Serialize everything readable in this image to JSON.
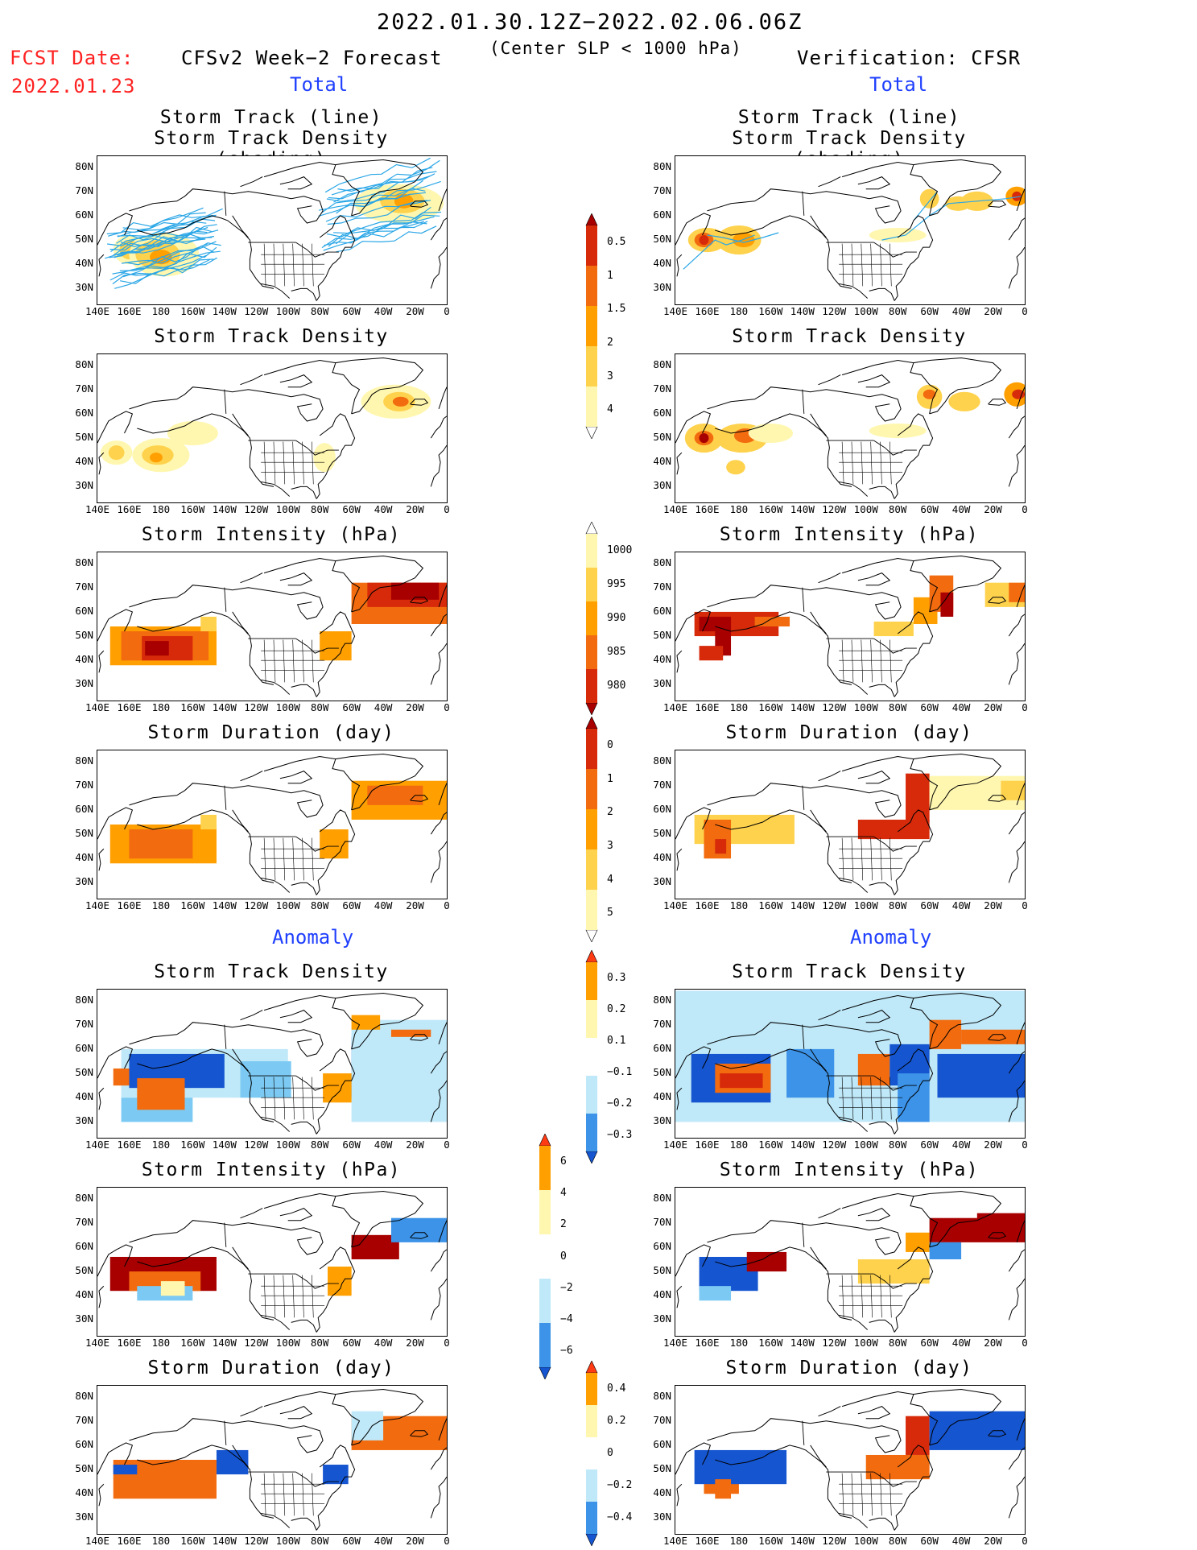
{
  "header": {
    "date_range": "2022.01.30.12Z−2022.02.06.06Z",
    "criterion": "(Center SLP < 1000 hPa)",
    "fcst_label": "FCST Date:",
    "fcst_date": "2022.01.23",
    "left_title": "CFSv2 Week−2 Forecast",
    "right_title": "Verification: CFSR",
    "total_label": "Total",
    "anomaly_label": "Anomaly"
  },
  "titles": {
    "track_line": "Storm Track (line)",
    "track_density_shading": "Storm Track Density (shading)",
    "track_density": "Storm Track Density",
    "intensity": "Storm Intensity (hPa)",
    "duration": "Storm Duration (day)"
  },
  "axes": {
    "lat_ticks": [
      "80N",
      "70N",
      "60N",
      "50N",
      "40N",
      "30N"
    ],
    "lon_ticks": [
      "140E",
      "160E",
      "180",
      "160W",
      "140W",
      "120W",
      "100W",
      "80W",
      "60W",
      "40W",
      "20W",
      "0"
    ]
  },
  "colorbars": {
    "track_density_total": [
      "0.5",
      "1",
      "1.5",
      "2",
      "3",
      "4"
    ],
    "intensity_total": [
      "1000",
      "995",
      "990",
      "985",
      "980"
    ],
    "duration_total": [
      "0",
      "1",
      "2",
      "3",
      "4",
      "5"
    ],
    "track_density_anomaly": [
      "0.3",
      "0.2",
      "0.1",
      "−0.1",
      "−0.2",
      "−0.3"
    ],
    "intensity_anomaly": [
      "6",
      "4",
      "2",
      "0",
      "−2",
      "−4",
      "−6"
    ],
    "duration_anomaly": [
      "0.4",
      "0.2",
      "0",
      "−0.2",
      "−0.4"
    ]
  },
  "colors": {
    "warm": [
      "#fff7b0",
      "#ffd24d",
      "#ff9f00",
      "#f26b0f",
      "#d62a0a",
      "#a80000"
    ],
    "cool": [
      "#bfe8f8",
      "#7ccaf3",
      "#3c93e8",
      "#1555d0"
    ],
    "track_line": "#2aa6e6"
  }
}
